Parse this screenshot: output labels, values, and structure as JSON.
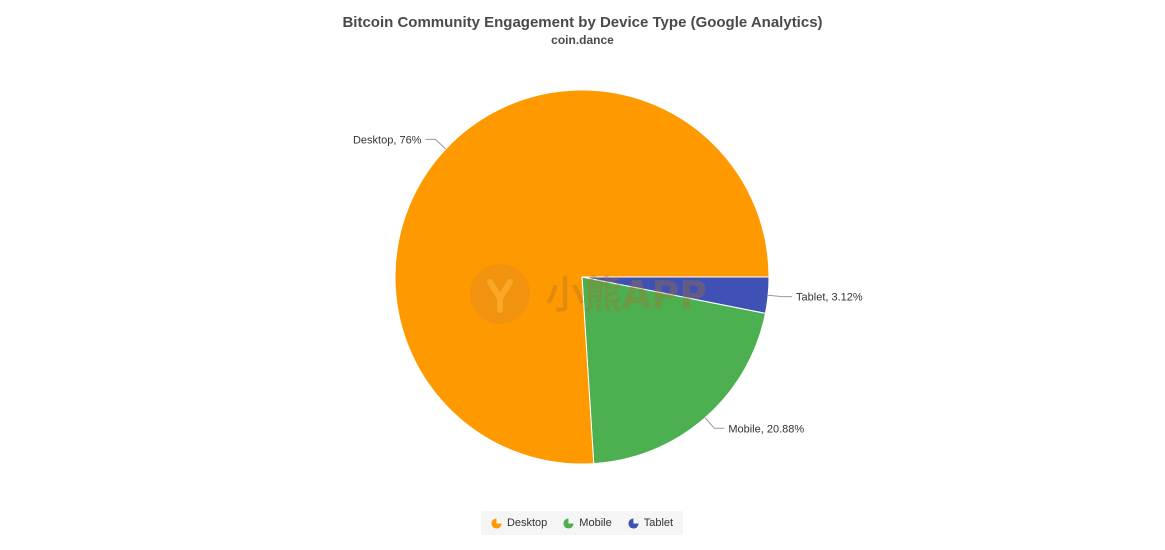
{
  "chart_data": {
    "type": "pie",
    "title": "Bitcoin Community Engagement by Device Type (Google Analytics)",
    "subtitle": "coin.dance",
    "slices": [
      {
        "name": "Desktop",
        "value": 76,
        "label": "Desktop, 76%",
        "color": "#ff9900"
      },
      {
        "name": "Mobile",
        "value": 20.88,
        "label": "Mobile, 20.88%",
        "color": "#4caf50"
      },
      {
        "name": "Tablet",
        "value": 3.12,
        "label": "Tablet, 3.12%",
        "color": "#3f51b5"
      }
    ],
    "legend": {
      "placement": "bottom-center",
      "items": [
        "Desktop",
        "Mobile",
        "Tablet"
      ]
    }
  },
  "watermark": {
    "text": "小熊APP"
  }
}
